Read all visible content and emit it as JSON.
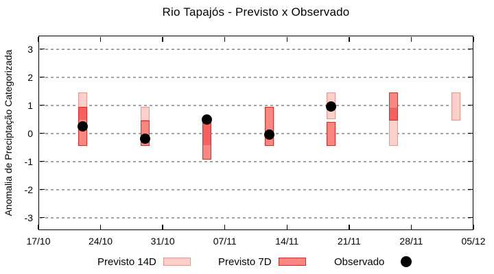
{
  "chart_data": {
    "type": "bar",
    "variant": "floating-range-bars-with-observed-points",
    "title": "Rio Tapajós - Previsto x Observado",
    "xlabel": "",
    "ylabel": "Anomalia de Preciptação Categorizada",
    "grid": "horizontal dashed gridlines at every integer y, framed plot box with mirrored inward ticks",
    "ylim": [
      -3.5,
      3.5
    ],
    "y_ticks": [
      3,
      2,
      1,
      0,
      -1,
      -2,
      -3
    ],
    "x_axis_unit": "days since first tick (17/10), 7-day tick spacing",
    "x_tick_labels": [
      "17/10",
      "24/10",
      "31/10",
      "07/11",
      "14/11",
      "21/11",
      "28/11",
      "05/12"
    ],
    "x_tick_days": [
      0,
      7,
      14,
      21,
      28,
      35,
      42,
      49
    ],
    "legend_position": "below plot, horizontal",
    "series": [
      {
        "name": "Previsto 14D",
        "type": "range-bar",
        "fill": "#fbd0ca",
        "border": "#ef938a",
        "ranges": [
          {
            "day": 5,
            "low": 0.45,
            "high": 1.45
          },
          {
            "day": 12,
            "low": 0.45,
            "high": 0.95
          },
          {
            "day": 19,
            "low": -0.45,
            "high": 0.45
          },
          {
            "day": 33,
            "low": 0.5,
            "high": 1.45
          },
          {
            "day": 40,
            "low": -0.45,
            "high": 0.95
          },
          {
            "day": 47,
            "low": 0.45,
            "high": 1.45
          }
        ]
      },
      {
        "name": "Previsto 7D",
        "type": "range-bar",
        "fill": "#fa8782",
        "border": "#e62420",
        "ranges": [
          {
            "day": 5,
            "low": -0.45,
            "high": 0.95
          },
          {
            "day": 12,
            "low": -0.45,
            "high": 0.45
          },
          {
            "day": 19,
            "low": -0.95,
            "high": 0.45
          },
          {
            "day": 26,
            "low": -0.45,
            "high": 0.95
          },
          {
            "day": 33,
            "low": -0.45,
            "high": 0.4
          },
          {
            "day": 40,
            "low": 0.45,
            "high": 1.45
          }
        ]
      },
      {
        "name": "Observado",
        "type": "scatter",
        "color": "#000000",
        "points": [
          {
            "day": 5,
            "value": 0.25
          },
          {
            "day": 12,
            "value": -0.2
          },
          {
            "day": 19,
            "value": 0.5
          },
          {
            "day": 26,
            "value": -0.05
          },
          {
            "day": 33,
            "value": 0.95
          }
        ]
      }
    ],
    "colors": {
      "overlap_fill": "#f6615d",
      "grid": "#a4a4a4",
      "frame": "#000000",
      "background": "#ffffff"
    }
  }
}
